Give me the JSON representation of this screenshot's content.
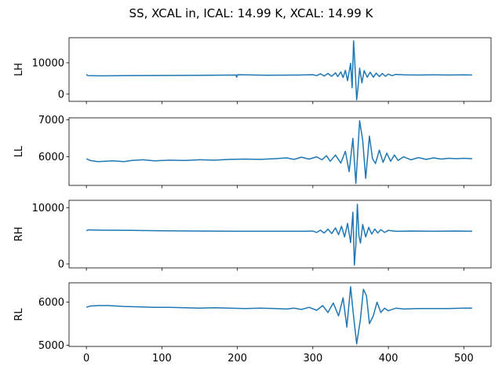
{
  "figure": {
    "title": "SS, XCAL in, ICAL: 14.99 K, XCAL: 14.99 K"
  },
  "chart_data": [
    {
      "type": "line",
      "ylabel": "LH",
      "xlim": [
        -23,
        536
      ],
      "ylim": [
        -2300,
        18000
      ],
      "yticks": [
        0,
        10000
      ],
      "series": [
        {
          "color": "#1f77b4",
          "points": [
            [
              0,
              6300
            ],
            [
              2,
              5900
            ],
            [
              20,
              5850
            ],
            [
              60,
              5900
            ],
            [
              100,
              5950
            ],
            [
              150,
              6000
            ],
            [
              198,
              6100
            ],
            [
              199,
              5400
            ],
            [
              200,
              6200
            ],
            [
              240,
              6050
            ],
            [
              280,
              6100
            ],
            [
              300,
              6200
            ],
            [
              305,
              5900
            ],
            [
              310,
              6500
            ],
            [
              315,
              5800
            ],
            [
              320,
              6600
            ],
            [
              325,
              5700
            ],
            [
              330,
              6800
            ],
            [
              333,
              5600
            ],
            [
              337,
              7100
            ],
            [
              340,
              5300
            ],
            [
              343,
              7600
            ],
            [
              346,
              4300
            ],
            [
              350,
              9800
            ],
            [
              352,
              2000
            ],
            [
              354,
              17000
            ],
            [
              356,
              8000
            ],
            [
              358,
              -1800
            ],
            [
              360,
              2500
            ],
            [
              362,
              8300
            ],
            [
              365,
              3600
            ],
            [
              368,
              7500
            ],
            [
              372,
              5400
            ],
            [
              376,
              7000
            ],
            [
              380,
              5400
            ],
            [
              384,
              6700
            ],
            [
              388,
              5600
            ],
            [
              392,
              6600
            ],
            [
              396,
              5700
            ],
            [
              400,
              6400
            ],
            [
              405,
              5900
            ],
            [
              410,
              6300
            ],
            [
              420,
              6150
            ],
            [
              440,
              6100
            ],
            [
              460,
              6150
            ],
            [
              480,
              6100
            ],
            [
              500,
              6150
            ],
            [
              511,
              6100
            ]
          ]
        }
      ]
    },
    {
      "type": "line",
      "ylabel": "LL",
      "xlim": [
        -23,
        536
      ],
      "ylim": [
        5230,
        7050
      ],
      "yticks": [
        6000,
        7000
      ],
      "series": [
        {
          "color": "#1f77b4",
          "points": [
            [
              0,
              5950
            ],
            [
              5,
              5900
            ],
            [
              15,
              5870
            ],
            [
              25,
              5880
            ],
            [
              35,
              5890
            ],
            [
              50,
              5870
            ],
            [
              60,
              5900
            ],
            [
              75,
              5920
            ],
            [
              90,
              5890
            ],
            [
              110,
              5910
            ],
            [
              130,
              5900
            ],
            [
              150,
              5920
            ],
            [
              170,
              5910
            ],
            [
              190,
              5930
            ],
            [
              210,
              5940
            ],
            [
              230,
              5930
            ],
            [
              250,
              5950
            ],
            [
              265,
              5970
            ],
            [
              275,
              5930
            ],
            [
              285,
              5990
            ],
            [
              295,
              5940
            ],
            [
              305,
              6000
            ],
            [
              312,
              5920
            ],
            [
              318,
              6030
            ],
            [
              323,
              5880
            ],
            [
              330,
              6050
            ],
            [
              337,
              5830
            ],
            [
              343,
              6150
            ],
            [
              348,
              5600
            ],
            [
              353,
              6500
            ],
            [
              357,
              5280
            ],
            [
              362,
              6970
            ],
            [
              366,
              6450
            ],
            [
              370,
              5420
            ],
            [
              375,
              6560
            ],
            [
              379,
              5950
            ],
            [
              383,
              5820
            ],
            [
              388,
              6180
            ],
            [
              393,
              5850
            ],
            [
              398,
              6100
            ],
            [
              403,
              5880
            ],
            [
              408,
              6050
            ],
            [
              413,
              5900
            ],
            [
              420,
              6000
            ],
            [
              430,
              5920
            ],
            [
              440,
              5980
            ],
            [
              450,
              5930
            ],
            [
              460,
              5970
            ],
            [
              470,
              5940
            ],
            [
              480,
              5960
            ],
            [
              490,
              5950
            ],
            [
              500,
              5960
            ],
            [
              511,
              5950
            ]
          ]
        }
      ]
    },
    {
      "type": "line",
      "ylabel": "RH",
      "xlim": [
        -23,
        536
      ],
      "ylim": [
        -700,
        11300
      ],
      "yticks": [
        0,
        10000
      ],
      "series": [
        {
          "color": "#1f77b4",
          "points": [
            [
              0,
              5900
            ],
            [
              3,
              6050
            ],
            [
              20,
              6000
            ],
            [
              60,
              5950
            ],
            [
              100,
              5900
            ],
            [
              150,
              5850
            ],
            [
              200,
              5800
            ],
            [
              250,
              5800
            ],
            [
              290,
              5800
            ],
            [
              300,
              5850
            ],
            [
              305,
              5600
            ],
            [
              310,
              6000
            ],
            [
              315,
              5500
            ],
            [
              320,
              6200
            ],
            [
              325,
              5400
            ],
            [
              330,
              6400
            ],
            [
              334,
              5200
            ],
            [
              338,
              6700
            ],
            [
              342,
              4800
            ],
            [
              346,
              7200
            ],
            [
              350,
              3800
            ],
            [
              353,
              9200
            ],
            [
              355,
              -200
            ],
            [
              357,
              3500
            ],
            [
              359,
              10600
            ],
            [
              361,
              5000
            ],
            [
              363,
              3700
            ],
            [
              366,
              7000
            ],
            [
              370,
              4800
            ],
            [
              374,
              6500
            ],
            [
              378,
              5300
            ],
            [
              382,
              6200
            ],
            [
              386,
              5500
            ],
            [
              390,
              6100
            ],
            [
              395,
              5600
            ],
            [
              400,
              5950
            ],
            [
              410,
              5800
            ],
            [
              430,
              5850
            ],
            [
              460,
              5800
            ],
            [
              490,
              5850
            ],
            [
              511,
              5800
            ]
          ]
        }
      ]
    },
    {
      "type": "line",
      "ylabel": "RL",
      "xlim": [
        -23,
        536
      ],
      "ylim": [
        4970,
        6450
      ],
      "yticks": [
        5000,
        6000
      ],
      "series": [
        {
          "color": "#1f77b4",
          "points": [
            [
              0,
              5880
            ],
            [
              5,
              5910
            ],
            [
              15,
              5920
            ],
            [
              30,
              5920
            ],
            [
              50,
              5900
            ],
            [
              70,
              5890
            ],
            [
              90,
              5880
            ],
            [
              110,
              5880
            ],
            [
              130,
              5870
            ],
            [
              150,
              5860
            ],
            [
              170,
              5870
            ],
            [
              190,
              5860
            ],
            [
              210,
              5850
            ],
            [
              230,
              5860
            ],
            [
              250,
              5850
            ],
            [
              265,
              5840
            ],
            [
              275,
              5860
            ],
            [
              285,
              5830
            ],
            [
              295,
              5880
            ],
            [
              305,
              5810
            ],
            [
              313,
              5920
            ],
            [
              320,
              5760
            ],
            [
              327,
              5980
            ],
            [
              334,
              5680
            ],
            [
              340,
              6100
            ],
            [
              345,
              5420
            ],
            [
              350,
              6360
            ],
            [
              353,
              5820
            ],
            [
              358,
              5030
            ],
            [
              363,
              5600
            ],
            [
              367,
              6300
            ],
            [
              371,
              6150
            ],
            [
              375,
              5500
            ],
            [
              380,
              5680
            ],
            [
              385,
              6000
            ],
            [
              390,
              5760
            ],
            [
              395,
              5860
            ],
            [
              400,
              5800
            ],
            [
              410,
              5860
            ],
            [
              420,
              5840
            ],
            [
              440,
              5850
            ],
            [
              460,
              5850
            ],
            [
              480,
              5850
            ],
            [
              500,
              5860
            ],
            [
              511,
              5860
            ]
          ]
        }
      ]
    }
  ],
  "shared_x": {
    "tick_values": [
      0,
      100,
      200,
      300,
      400,
      500
    ],
    "tick_labels": [
      "0",
      "100",
      "200",
      "300",
      "400",
      "500"
    ]
  }
}
